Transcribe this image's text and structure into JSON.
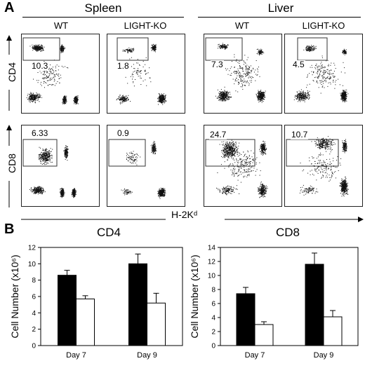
{
  "panelA": {
    "letter": "A",
    "groups": [
      {
        "name": "Spleen",
        "columns": [
          "WT",
          "LIGHT-KO"
        ]
      },
      {
        "name": "Liver",
        "columns": [
          "WT",
          "LIGHT-KO"
        ]
      }
    ],
    "row_labels": [
      "CD4",
      "CD8"
    ],
    "x_axis_label": "H-2Kᵈ",
    "gate_values": {
      "cd4": [
        "10.3",
        "1.8",
        "7.3",
        "4.5"
      ],
      "cd8": [
        "6.33",
        "0.9",
        "24.7",
        "10.7"
      ]
    }
  },
  "chart_data": [
    {
      "type": "bar",
      "title": "CD4",
      "ylabel": "Cell Number (x10⁶)",
      "categories": [
        "Day 7",
        "Day 9"
      ],
      "ylim": [
        0,
        12
      ],
      "yticks": [
        0,
        2,
        4,
        6,
        8,
        10,
        12
      ],
      "series": [
        {
          "values": [
            8.6,
            10.0
          ],
          "errors": [
            0.6,
            1.2
          ],
          "color": "#000000"
        },
        {
          "values": [
            5.7,
            5.2
          ],
          "errors": [
            0.4,
            1.2
          ],
          "color": "#ffffff"
        }
      ]
    },
    {
      "type": "bar",
      "title": "CD8",
      "ylabel": "Cell Number (x10⁶)",
      "categories": [
        "Day 7",
        "Day 9"
      ],
      "ylim": [
        0,
        14
      ],
      "yticks": [
        0,
        2,
        4,
        6,
        8,
        10,
        12,
        14
      ],
      "series": [
        {
          "values": [
            7.4,
            11.6
          ],
          "errors": [
            0.9,
            1.6
          ],
          "color": "#000000"
        },
        {
          "values": [
            3.0,
            4.1
          ],
          "errors": [
            0.4,
            0.9
          ],
          "color": "#ffffff"
        }
      ]
    }
  ],
  "panelB": {
    "letter": "B"
  }
}
